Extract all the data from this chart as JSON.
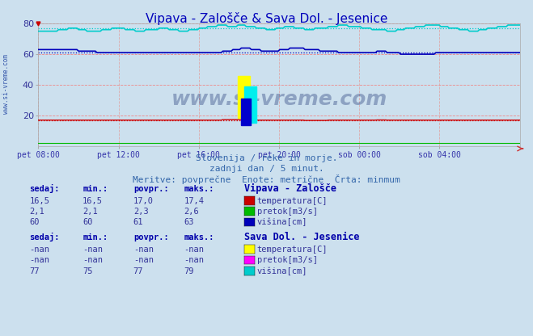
{
  "title": "Vipava - Zalošče & Sava Dol. - Jesenice",
  "title_color": "#0000bb",
  "bg_color": "#cce0ee",
  "xlabel": "",
  "ylabel": "",
  "ylim": [
    0,
    80
  ],
  "yticks": [
    20,
    40,
    60,
    80
  ],
  "xtick_labels": [
    "pet 08:00",
    "pet 12:00",
    "pet 16:00",
    "pet 20:00",
    "sob 00:00",
    "sob 04:00"
  ],
  "n_points": 288,
  "subtitle1": "Slovenija / reke in morje.",
  "subtitle2": "zadnji dan / 5 minut.",
  "subtitle3": "Meritve: povprečne  Enote: metrične  Črta: minmum",
  "watermark": "www.si-vreme.com",
  "grid_color_h": "#ee8888",
  "grid_color_v": "#ddaaaa",
  "vipava_temp_color": "#cc0000",
  "vipava_pretok_color": "#00bb00",
  "vipava_visina_color": "#0000bb",
  "sava_temp_color": "#ffff00",
  "sava_pretok_color": "#ff00ff",
  "sava_visina_color": "#00cccc",
  "vipava_temp_avg": 17.0,
  "vipava_visina_avg": 61,
  "sava_visina_avg": 77,
  "label_color": "#0000aa",
  "text_color": "#333399"
}
